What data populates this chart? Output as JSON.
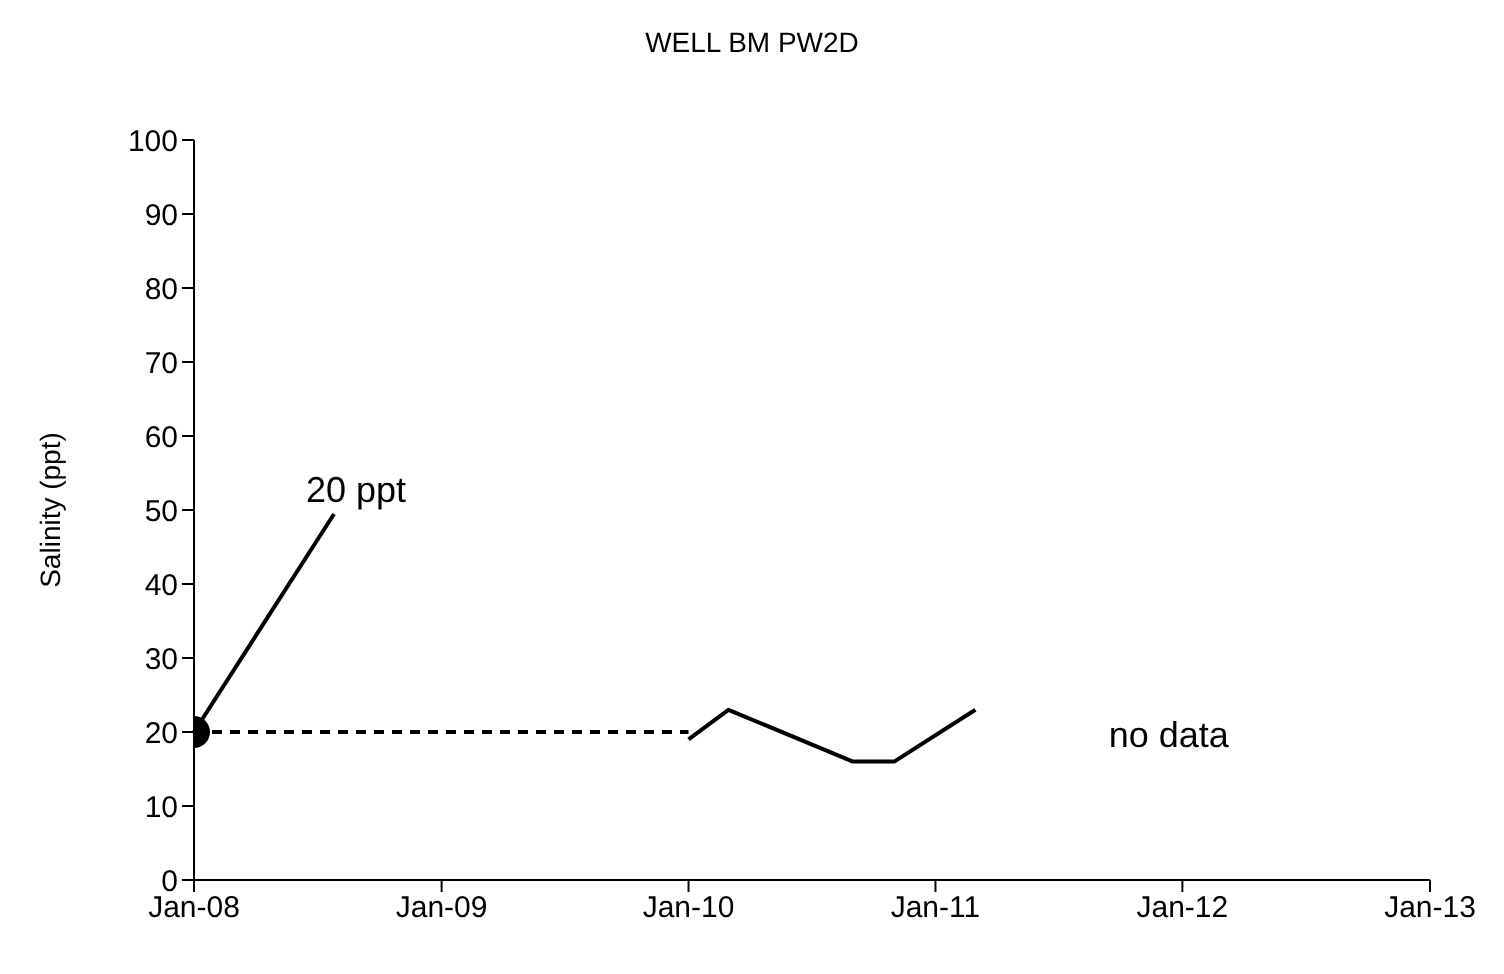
{
  "chart_data": {
    "type": "line",
    "title": "WELL BM PW2D",
    "ylabel": "Salinity (ppt)",
    "xlim": [
      "2008-01",
      "2013-01"
    ],
    "xticks": [
      {
        "value": "2008-01",
        "label": "Jan-08"
      },
      {
        "value": "2009-01",
        "label": "Jan-09"
      },
      {
        "value": "2010-01",
        "label": "Jan-10"
      },
      {
        "value": "2011-01",
        "label": "Jan-11"
      },
      {
        "value": "2012-01",
        "label": "Jan-12"
      },
      {
        "value": "2013-01",
        "label": "Jan-13"
      }
    ],
    "ylim": [
      0,
      100
    ],
    "yticks": [
      0,
      10,
      20,
      30,
      40,
      50,
      60,
      70,
      80,
      90,
      100
    ],
    "grid": false,
    "series": [
      {
        "type": "scatter",
        "x": [
          "2008-01"
        ],
        "values": [
          20
        ],
        "color": "#000000",
        "marker": "circle"
      },
      {
        "x": [
          "2008-01",
          "2010-01"
        ],
        "values": [
          20,
          20
        ],
        "color": "#000000",
        "line_style": "dashed",
        "marker": "none"
      },
      {
        "x": [
          "2010-01",
          "2010-03",
          "2010-09",
          "2010-11",
          "2011-03"
        ],
        "values": [
          19,
          23,
          16,
          16,
          23
        ],
        "color": "#000000",
        "line_style": "solid",
        "marker": "none"
      }
    ],
    "annotations": [
      {
        "text": "20 ppt",
        "x": "2008-01",
        "y": 20
      },
      "no data"
    ]
  }
}
